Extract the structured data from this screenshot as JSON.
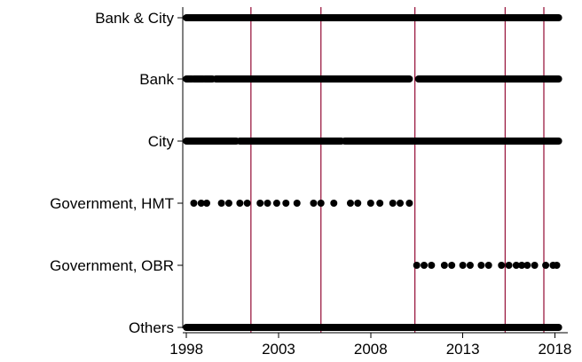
{
  "chart_data": {
    "type": "scatter",
    "title": "",
    "xlabel": "",
    "ylabel": "",
    "xlim": [
      1997.8,
      2018.7
    ],
    "grid": false,
    "legend": "none",
    "x_ticks": [
      1998,
      2003,
      2008,
      2013,
      2018
    ],
    "x_tick_labels": [
      "1998",
      "2003",
      "2008",
      "2013",
      "2018"
    ],
    "categories": [
      "Bank & City",
      "Bank",
      "City",
      "Government, HMT",
      "Government, OBR",
      "Others"
    ],
    "vertical_lines": [
      2001.5,
      2005.3,
      2010.4,
      2015.3,
      2017.4
    ],
    "colors": {
      "marker": "#000000",
      "vertical_line": "#9B1B42",
      "axis": "#000000"
    },
    "series": [
      {
        "category": "Bank & City",
        "x_ranges": [
          [
            1998.0,
            2018.2
          ]
        ]
      },
      {
        "category": "Bank",
        "x_ranges": [
          [
            1998.0,
            1998.3
          ],
          [
            1998.4,
            1998.9
          ],
          [
            1999.0,
            1999.4
          ],
          [
            1999.6,
            2010.1
          ],
          [
            2010.6,
            2018.2
          ]
        ]
      },
      {
        "category": "City",
        "x_ranges": [
          [
            1998.0,
            2000.7
          ],
          [
            2000.9,
            2006.4
          ],
          [
            2006.6,
            2018.2
          ]
        ]
      },
      {
        "category": "Government, HMT",
        "x": [
          1998.4,
          1998.8,
          1999.1,
          1999.9,
          2000.3,
          2000.9,
          2001.3,
          2002.0,
          2002.4,
          2002.9,
          2003.4,
          2004.0,
          2004.9,
          2005.3,
          2006.0,
          2006.9,
          2007.3,
          2008.0,
          2008.5,
          2009.2,
          2009.6,
          2010.1
        ]
      },
      {
        "category": "Government, OBR",
        "x": [
          2010.5,
          2010.9,
          2011.3,
          2012.0,
          2012.4,
          2013.0,
          2013.4,
          2014.0,
          2014.4,
          2015.1,
          2015.5,
          2015.9,
          2016.2,
          2016.5,
          2016.9,
          2017.5,
          2017.9,
          2018.1
        ]
      },
      {
        "category": "Others",
        "x_ranges": [
          [
            1998.0,
            2018.2
          ]
        ]
      }
    ]
  }
}
